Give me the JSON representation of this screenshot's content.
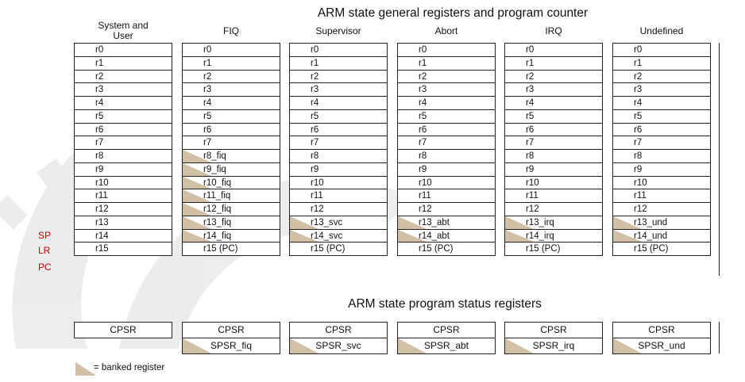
{
  "title_registers": "ARM state general registers and program counter",
  "title_status": "ARM state program status registers",
  "side_labels": [
    "SP",
    "LR",
    "PC"
  ],
  "colors": {
    "banked": "#d2c0a6",
    "side_label": "#c00000",
    "border": "#222222"
  },
  "modes": [
    {
      "name": "System and User",
      "regs": [
        "r0",
        "r1",
        "r2",
        "r3",
        "r4",
        "r5",
        "r6",
        "r7",
        "r8",
        "r9",
        "r10",
        "r11",
        "r12",
        "r13",
        "r14",
        "r15"
      ],
      "banked_from": null,
      "psr": [
        "CPSR"
      ]
    },
    {
      "name": "FIQ",
      "regs": [
        "r0",
        "r1",
        "r2",
        "r3",
        "r4",
        "r5",
        "r6",
        "r7",
        "r8_fiq",
        "r9_fiq",
        "r10_fiq",
        "r11_fiq",
        "r12_fiq",
        "r13_fiq",
        "r14_fiq",
        "r15 (PC)"
      ],
      "banked_from": 8,
      "psr": [
        "CPSR",
        "SPSR_fiq"
      ]
    },
    {
      "name": "Supervisor",
      "regs": [
        "r0",
        "r1",
        "r2",
        "r3",
        "r4",
        "r5",
        "r6",
        "r7",
        "r8",
        "r9",
        "r10",
        "r11",
        "r12",
        "r13_svc",
        "r14_svc",
        "r15 (PC)"
      ],
      "banked_from": 13,
      "psr": [
        "CPSR",
        "SPSR_svc"
      ]
    },
    {
      "name": "Abort",
      "regs": [
        "r0",
        "r1",
        "r2",
        "r3",
        "r4",
        "r5",
        "r6",
        "r7",
        "r8",
        "r9",
        "r10",
        "r11",
        "r12",
        "r13_abt",
        "r14_abt",
        "r15 (PC)"
      ],
      "banked_from": 13,
      "psr": [
        "CPSR",
        "SPSR_abt"
      ]
    },
    {
      "name": "IRQ",
      "regs": [
        "r0",
        "r1",
        "r2",
        "r3",
        "r4",
        "r5",
        "r6",
        "r7",
        "r8",
        "r9",
        "r10",
        "r11",
        "r12",
        "r13_irq",
        "r14_irq",
        "r15 (PC)"
      ],
      "banked_from": 13,
      "psr": [
        "CPSR",
        "SPSR_irq"
      ]
    },
    {
      "name": "Undefined",
      "regs": [
        "r0",
        "r1",
        "r2",
        "r3",
        "r4",
        "r5",
        "r6",
        "r7",
        "r8",
        "r9",
        "r10",
        "r11",
        "r12",
        "r13_und",
        "r14_und",
        "r15 (PC)"
      ],
      "banked_from": 13,
      "psr": [
        "CPSR",
        "SPSR_und"
      ]
    }
  ],
  "legend": {
    "text": "= banked register"
  }
}
